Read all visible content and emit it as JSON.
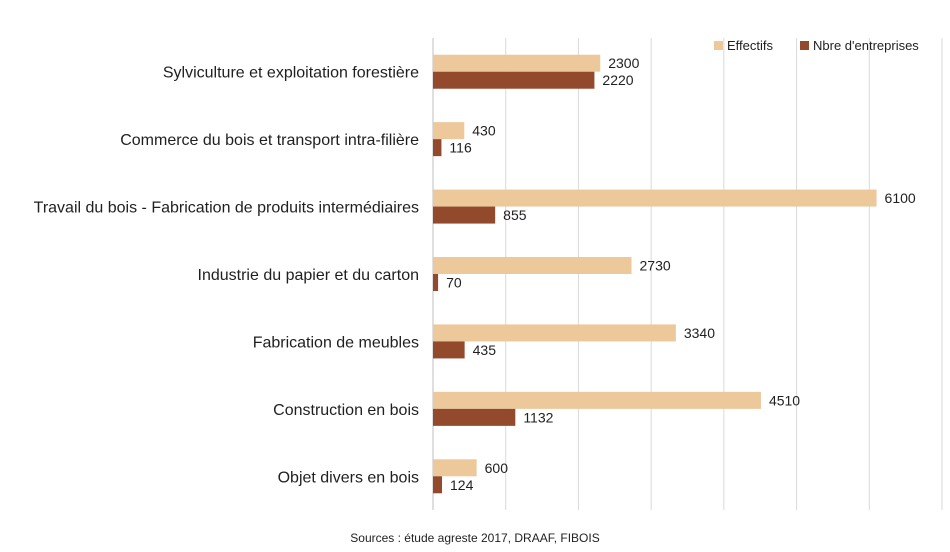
{
  "chart_data": {
    "type": "bar",
    "orientation": "horizontal",
    "categories": [
      "Sylviculture et exploitation forestière",
      "Commerce du bois et transport intra-filière",
      "Travail du bois - Fabrication de produits intermédiaires",
      "Industrie du papier et du carton",
      "Fabrication de meubles",
      "Construction en bois",
      "Objet divers en bois"
    ],
    "series": [
      {
        "name": "Effectifs",
        "color": "#ecc89a",
        "values": [
          2300,
          430,
          6100,
          2730,
          3340,
          4510,
          600
        ]
      },
      {
        "name": "Nbre d'entreprises",
        "color": "#93492c",
        "values": [
          2220,
          116,
          855,
          70,
          435,
          1132,
          124
        ]
      }
    ],
    "xlim": [
      0,
      7000
    ],
    "grid": true,
    "legend_position": "top-right",
    "data_labels": true
  },
  "source_text": "Sources : étude agreste 2017, DRAAF, FIBOIS"
}
